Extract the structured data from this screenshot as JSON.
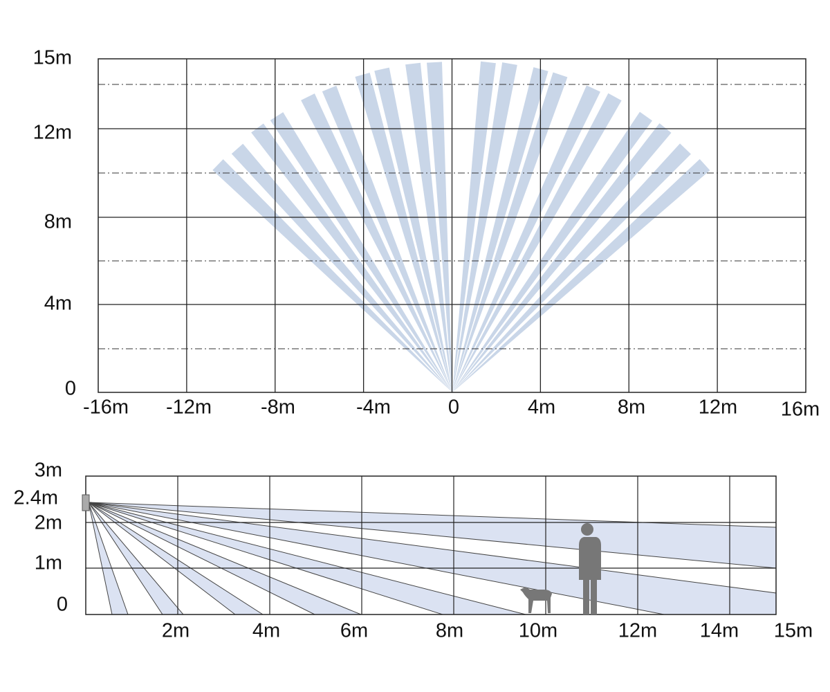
{
  "top_view": {
    "y_labels": [
      "15m",
      "12m",
      "8m",
      "4m",
      "0"
    ],
    "x_labels": [
      "-16m",
      "-12m",
      "-8m",
      "-4m",
      "0",
      "4m",
      "8m",
      "12m",
      "16m"
    ]
  },
  "side_view": {
    "y_labels": [
      "3m",
      "2.4m",
      "2m",
      "1m",
      "0"
    ],
    "x_labels": [
      "2m",
      "4m",
      "6m",
      "8m",
      "10m",
      "12m",
      "14m",
      "15m"
    ]
  }
}
